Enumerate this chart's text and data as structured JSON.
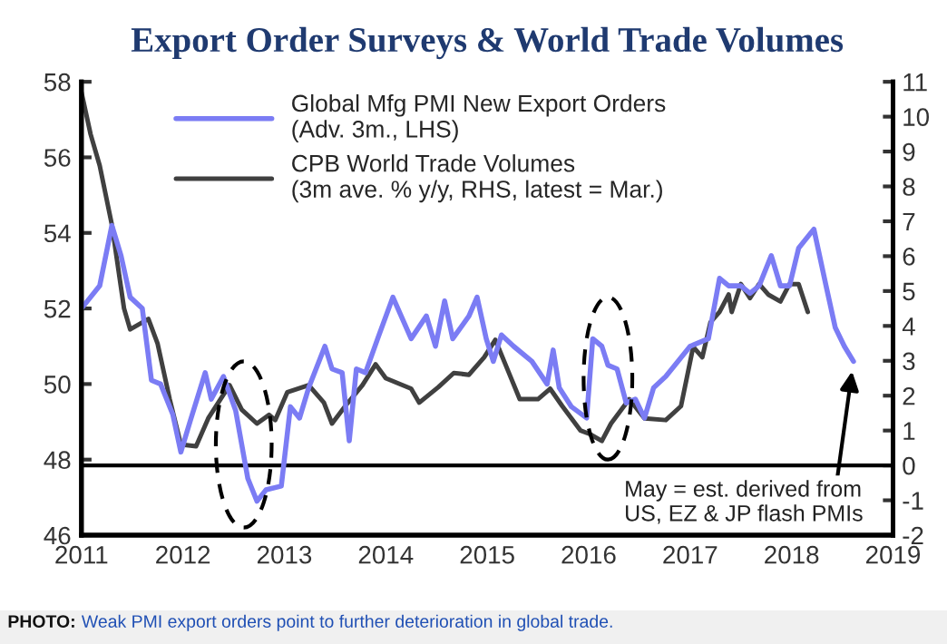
{
  "chart_data": {
    "type": "line",
    "title": "Export Order Surveys & World Trade Volumes",
    "xlim": [
      2011,
      2019
    ],
    "xticks": [
      2011,
      2012,
      2013,
      2014,
      2015,
      2016,
      2017,
      2018,
      2019
    ],
    "ylim": [
      46,
      58
    ],
    "yticks": [
      46,
      48,
      50,
      52,
      54,
      56,
      58
    ],
    "y2lim": [
      -2,
      11
    ],
    "y2ticks": [
      -2,
      -1,
      0,
      1,
      2,
      3,
      4,
      5,
      6,
      7,
      8,
      9,
      10,
      11
    ],
    "legend": "top left",
    "grid": false,
    "marker": "none",
    "line_style": "solid",
    "series": [
      {
        "name": "Global Mfg PMI New Export Orders\n(Adv. 3m., LHS)",
        "color": "#7b7cf4",
        "x": [
          2011.0,
          2011.18,
          2011.3,
          2011.39,
          2011.48,
          2011.6,
          2011.69,
          2011.78,
          2011.9,
          2011.98,
          2012.07,
          2012.22,
          2012.28,
          2012.4,
          2012.52,
          2012.64,
          2012.73,
          2012.82,
          2012.97,
          2013.06,
          2013.15,
          2013.24,
          2013.4,
          2013.47,
          2013.57,
          2013.64,
          2013.71,
          2013.8,
          2013.92,
          2014.07,
          2014.25,
          2014.4,
          2014.49,
          2014.58,
          2014.66,
          2014.82,
          2014.9,
          2014.99,
          2015.06,
          2015.14,
          2015.26,
          2015.44,
          2015.59,
          2015.65,
          2015.71,
          2015.83,
          2015.98,
          2016.04,
          2016.13,
          2016.19,
          2016.28,
          2016.37,
          2016.46,
          2016.55,
          2016.64,
          2016.76,
          2016.91,
          2017.0,
          2017.18,
          2017.29,
          2017.38,
          2017.5,
          2017.59,
          2017.68,
          2017.8,
          2017.89,
          2017.98,
          2018.07,
          2018.22,
          2018.34,
          2018.43,
          2018.52,
          2018.61
        ],
        "values": [
          52.0,
          52.6,
          54.2,
          53.4,
          52.3,
          52.0,
          50.1,
          50.0,
          49.2,
          48.2,
          49.0,
          50.3,
          49.6,
          50.2,
          49.3,
          47.5,
          46.9,
          47.2,
          47.3,
          49.4,
          49.1,
          49.9,
          51.0,
          50.4,
          50.3,
          48.5,
          50.4,
          50.3,
          51.2,
          52.3,
          51.2,
          51.8,
          51.0,
          52.2,
          51.2,
          51.8,
          52.3,
          51.2,
          50.6,
          51.3,
          51.0,
          50.6,
          50.0,
          50.9,
          49.9,
          49.4,
          49.1,
          51.2,
          51.0,
          50.5,
          50.4,
          49.5,
          49.6,
          49.1,
          49.9,
          50.2,
          50.7,
          51.0,
          51.2,
          52.8,
          52.6,
          52.6,
          52.4,
          52.6,
          53.4,
          52.6,
          52.6,
          53.6,
          54.1,
          52.6,
          51.5,
          51.0,
          50.6
        ]
      },
      {
        "name": "CPB World Trade Volumes\n(3m ave. % y/y, RHS, latest = Mar.)",
        "color": "#404040",
        "axis": "y2",
        "x": [
          2011.0,
          2011.09,
          2011.18,
          2011.3,
          2011.42,
          2011.48,
          2011.57,
          2011.66,
          2011.75,
          2011.87,
          2011.98,
          2012.13,
          2012.25,
          2012.46,
          2012.58,
          2012.73,
          2012.85,
          2012.91,
          2013.03,
          2013.24,
          2013.39,
          2013.47,
          2013.6,
          2013.77,
          2013.9,
          2014.0,
          2014.25,
          2014.33,
          2014.52,
          2014.67,
          2014.82,
          2014.97,
          2015.08,
          2015.2,
          2015.32,
          2015.5,
          2015.62,
          2015.74,
          2015.83,
          2015.92,
          2016.01,
          2016.13,
          2016.22,
          2016.4,
          2016.55,
          2016.76,
          2016.91,
          2017.03,
          2017.12,
          2017.2,
          2017.29,
          2017.38,
          2017.41,
          2017.5,
          2017.59,
          2017.68,
          2017.77,
          2017.89,
          2017.98,
          2018.07,
          2018.16
        ],
        "values": [
          10.7,
          9.5,
          8.6,
          6.9,
          4.5,
          3.9,
          4.05,
          4.2,
          3.5,
          1.9,
          0.6,
          0.55,
          1.35,
          2.3,
          1.6,
          1.2,
          1.45,
          1.3,
          2.1,
          2.3,
          1.8,
          1.2,
          1.7,
          2.3,
          2.9,
          2.5,
          2.2,
          1.8,
          2.25,
          2.65,
          2.6,
          3.1,
          3.6,
          2.75,
          1.9,
          1.9,
          2.2,
          1.7,
          1.35,
          1.0,
          0.9,
          0.7,
          1.2,
          1.9,
          1.35,
          1.3,
          1.7,
          3.4,
          3.1,
          4.1,
          4.4,
          4.9,
          4.4,
          5.2,
          4.8,
          5.2,
          4.9,
          4.7,
          5.2,
          5.2,
          4.4
        ]
      }
    ],
    "ref_lines": [
      {
        "axis": "y2",
        "value": 0,
        "color": "#000000"
      }
    ],
    "annotations": [
      "May = est. derived from\nUS, EZ & JP flash PMIs",
      "PHOTO:",
      "Weak PMI export orders point to further deterioration in global trade."
    ]
  }
}
